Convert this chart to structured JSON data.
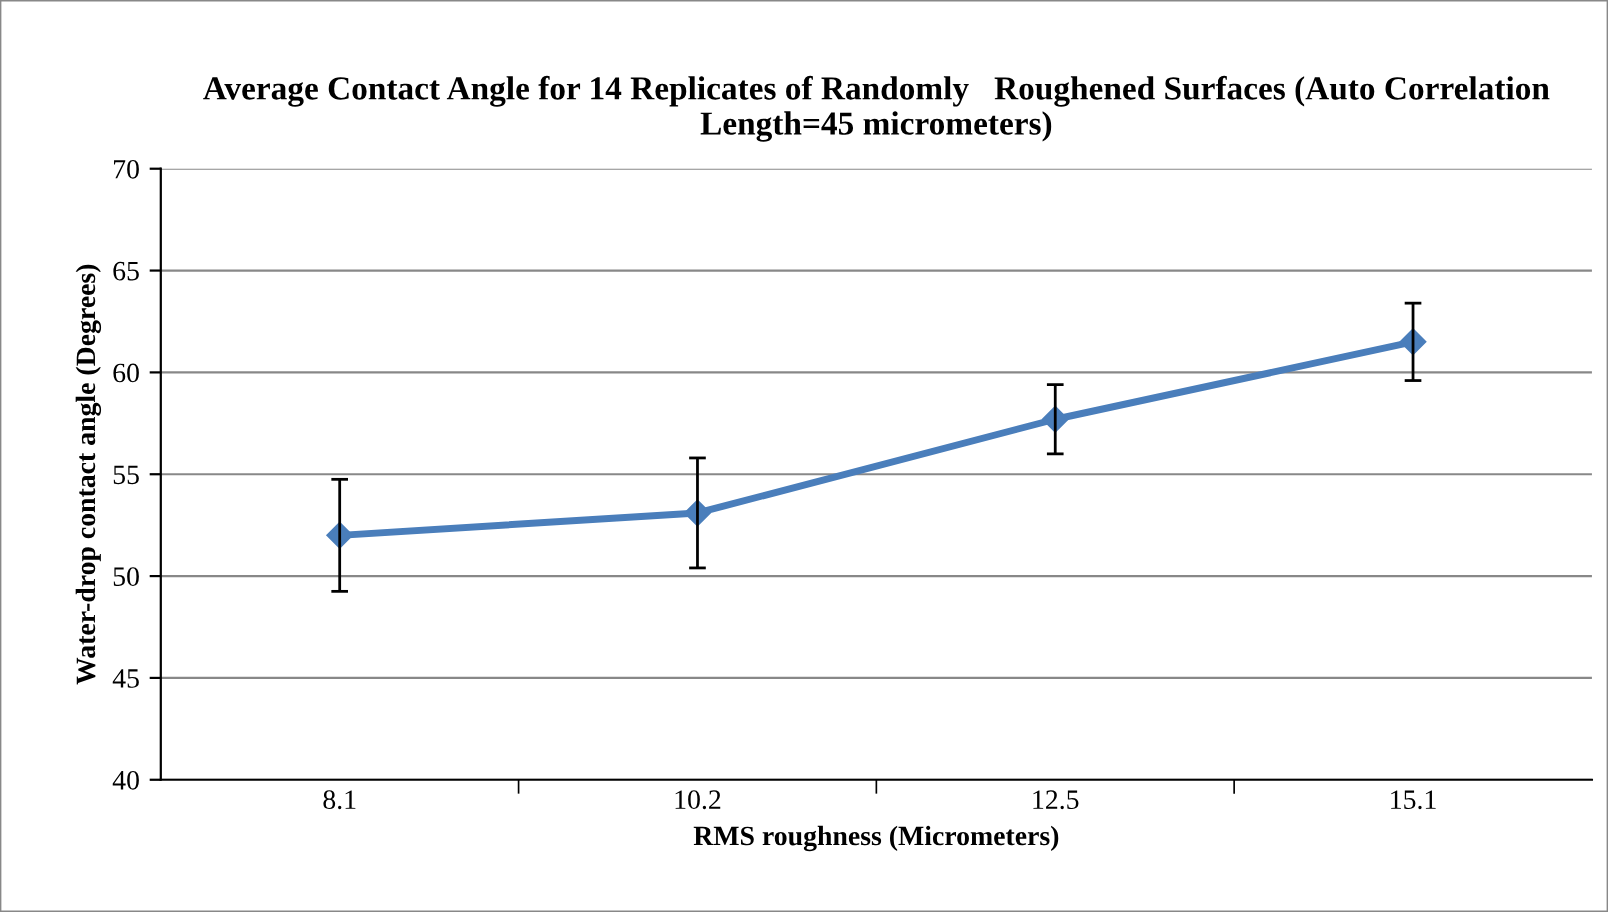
{
  "chart_data": {
    "type": "line",
    "title": "Average Contact Angle for 14 Replicates of Randomly   Roughened Surfaces (Auto Correlation Length=45 micrometers)",
    "xlabel": "RMS roughness (Micrometers)",
    "ylabel": "Water-drop contact angle (Degrees)",
    "categories": [
      "8.1",
      "10.2",
      "12.5",
      "15.1"
    ],
    "series": [
      {
        "color": "#4a7ebb",
        "values": [
          52.0,
          53.1,
          57.7,
          61.5
        ],
        "errors": [
          2.75,
          2.7,
          1.7,
          1.9
        ]
      }
    ],
    "ylim": [
      40,
      70
    ],
    "yticks": [
      40,
      45,
      50,
      55,
      60,
      65,
      70
    ],
    "grid": "y",
    "marker": "diamond",
    "line_style": "solid",
    "legend": false
  }
}
